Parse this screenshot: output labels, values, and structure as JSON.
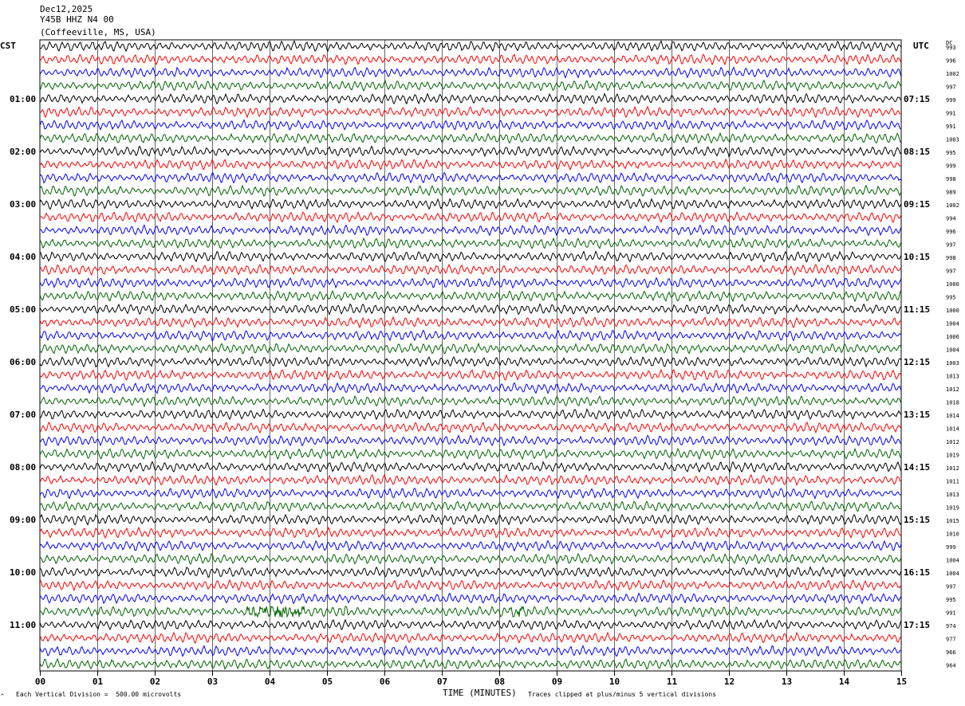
{
  "header": {
    "date": "Dec12,2025",
    "station": "Y45B HHZ N4 00",
    "location": "(Coffeeville, MS, USA)"
  },
  "axes_labels": {
    "left_timezone": "CST",
    "right_timezone": "UTC",
    "right_column": "DC",
    "x_title": "TIME (MINUTES)"
  },
  "notes": {
    "scale": "Each Vertical Division =  500.00 microvolts",
    "clip": "Traces clipped at plus/minus 5 vertical divisions",
    "corner": "^"
  },
  "colors": {
    "trace_cycle": [
      "#000000",
      "#ff0000",
      "#0000ff",
      "#006400"
    ],
    "grid": "#000000",
    "background": "#ffffff"
  },
  "chart_data": {
    "type": "line",
    "xlabel": "TIME (MINUTES)",
    "xlim": [
      0,
      15
    ],
    "x_ticks": [
      "00",
      "01",
      "02",
      "03",
      "04",
      "05",
      "06",
      "07",
      "08",
      "09",
      "10",
      "11",
      "12",
      "13",
      "14",
      "15"
    ],
    "left_hour_labels": [
      {
        "row": 4,
        "label": "01:00"
      },
      {
        "row": 8,
        "label": "02:00"
      },
      {
        "row": 12,
        "label": "03:00"
      },
      {
        "row": 16,
        "label": "04:00"
      },
      {
        "row": 20,
        "label": "05:00"
      },
      {
        "row": 24,
        "label": "06:00"
      },
      {
        "row": 28,
        "label": "07:00"
      },
      {
        "row": 32,
        "label": "08:00"
      },
      {
        "row": 36,
        "label": "09:00"
      },
      {
        "row": 40,
        "label": "10:00"
      },
      {
        "row": 44,
        "label": "11:00"
      }
    ],
    "right_hour_labels": [
      {
        "row": 4,
        "label": "07:15"
      },
      {
        "row": 8,
        "label": "08:15"
      },
      {
        "row": 12,
        "label": "09:15"
      },
      {
        "row": 16,
        "label": "10:15"
      },
      {
        "row": 20,
        "label": "11:15"
      },
      {
        "row": 24,
        "label": "12:15"
      },
      {
        "row": 28,
        "label": "13:15"
      },
      {
        "row": 32,
        "label": "14:15"
      },
      {
        "row": 36,
        "label": "15:15"
      },
      {
        "row": 40,
        "label": "16:15"
      },
      {
        "row": 44,
        "label": "17:15"
      }
    ],
    "dc_offsets": [
      993,
      996,
      1002,
      997,
      999,
      991,
      991,
      1003,
      995,
      999,
      998,
      989,
      1002,
      994,
      996,
      997,
      998,
      997,
      1000,
      995,
      1000,
      1004,
      1006,
      1004,
      1003,
      1013,
      1012,
      1018,
      1014,
      1014,
      1012,
      1019,
      1012,
      1011,
      1013,
      1019,
      1015,
      1010,
      999,
      1004,
      1004,
      997,
      995,
      991,
      974,
      977,
      966,
      964
    ],
    "events": [
      {
        "row": 43,
        "start_min": 3.6,
        "end_min": 4.6,
        "amp": 2.2
      },
      {
        "row": 43,
        "start_min": 5.2,
        "end_min": 5.35,
        "amp": 2.0
      },
      {
        "row": 43,
        "start_min": 8.2,
        "end_min": 8.5,
        "amp": 1.6
      }
    ]
  }
}
